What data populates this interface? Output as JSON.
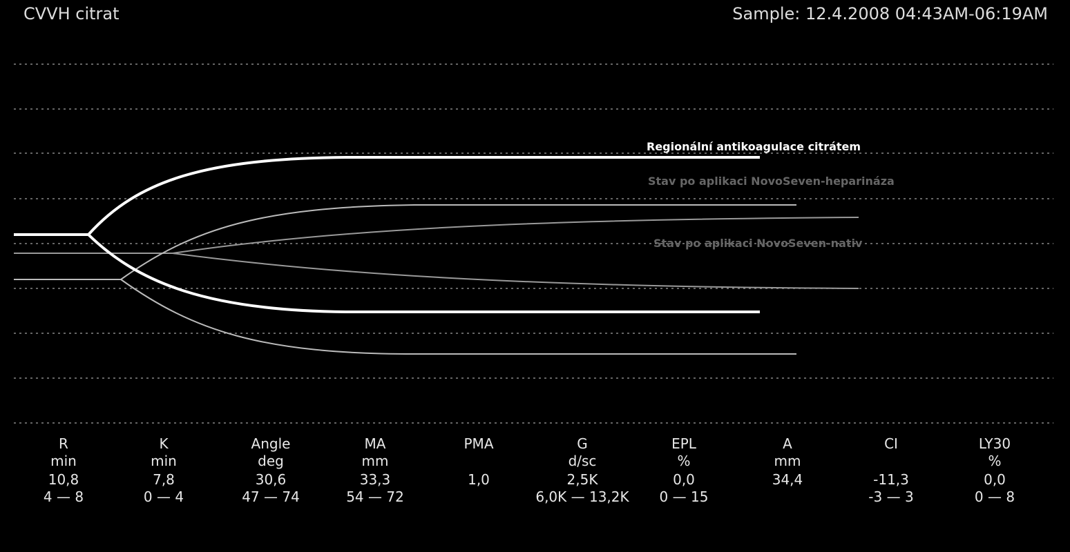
{
  "header": {
    "title": "CVVH citrat",
    "sample": "Sample: 12.4.2008 04:43AM-06:19AM"
  },
  "curve_labels": [
    "Regionální antikoagulace citrátem",
    "Stav po aplikaci NovoSeven-heparináza",
    "Stav po aplikaci NovoSeven-nativ"
  ],
  "table": {
    "columns": [
      {
        "name": "R",
        "unit": "min",
        "value": "10,8",
        "range": "4 — 8"
      },
      {
        "name": "K",
        "unit": "min",
        "value": "7,8",
        "range": "0 — 4"
      },
      {
        "name": "Angle",
        "unit": "deg",
        "value": "30,6",
        "range": "47 — 74"
      },
      {
        "name": "MA",
        "unit": "mm",
        "value": "33,3",
        "range": "54 — 72"
      },
      {
        "name": "PMA",
        "unit": null,
        "value": "1,0",
        "range": null
      },
      {
        "name": "G",
        "unit": "d/sc",
        "value": "2,5K",
        "range": "6,0K — 13,2K"
      },
      {
        "name": "EPL",
        "unit": "%",
        "value": "0,0",
        "range": "0 — 15"
      },
      {
        "name": "A",
        "unit": "mm",
        "value": "34,4",
        "range": null
      },
      {
        "name": "CI",
        "unit": null,
        "value": "-11,3",
        "range": "-3 — 3"
      },
      {
        "name": "LY30",
        "unit": "%",
        "value": "0,0",
        "range": "0 — 8"
      }
    ]
  }
}
